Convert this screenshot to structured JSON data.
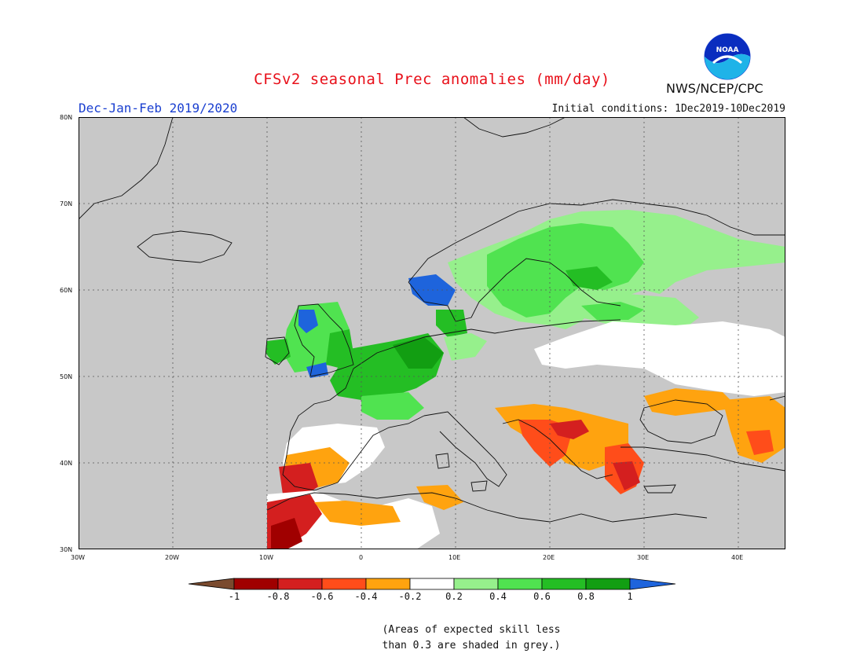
{
  "title": "CFSv2 seasonal Prec anomalies (mm/day)",
  "season": "Dec-Jan-Feb 2019/2020",
  "initial_conditions": "Initial conditions: 1Dec2019-10Dec2019",
  "agency": "NWS/NCEP/CPC",
  "logo_text": "NOAA",
  "map": {
    "lat_labels": [
      "80N",
      "70N",
      "60N",
      "50N",
      "40N",
      "30N"
    ],
    "lon_labels": [
      "30W",
      "20W",
      "10W",
      "0",
      "10E",
      "20E",
      "30E",
      "40E"
    ],
    "extent": {
      "lon_min": -30,
      "lon_max": 45,
      "lat_min": 30,
      "lat_max": 80
    },
    "background_color": "#c8c8c8",
    "grid_style": "dotted"
  },
  "legend": {
    "ticks": [
      "-1",
      "-0.8",
      "-0.6",
      "-0.4",
      "-0.2",
      "0.2",
      "0.4",
      "0.6",
      "0.8",
      "1"
    ],
    "colors": [
      "#7a4a2e",
      "#a00000",
      "#d41f1f",
      "#ff4d1a",
      "#ffa30f",
      "#ffffff",
      "#96f08c",
      "#50e350",
      "#24be24",
      "#129e12",
      "#1e64dc"
    ]
  },
  "footnote_line1": "(Areas of expected skill less",
  "footnote_line2": "than 0.3 are shaded in grey.)",
  "anomaly_regions": [
    {
      "name": "norway-wet",
      "color": "#1e64dc"
    },
    {
      "name": "scandinavia-wet",
      "color": "#50e350"
    },
    {
      "name": "britain-wet",
      "color": "#24be24"
    },
    {
      "name": "iberia-dry",
      "color": "#d41f1f"
    },
    {
      "name": "balkans-dry",
      "color": "#ff4d1a"
    }
  ]
}
